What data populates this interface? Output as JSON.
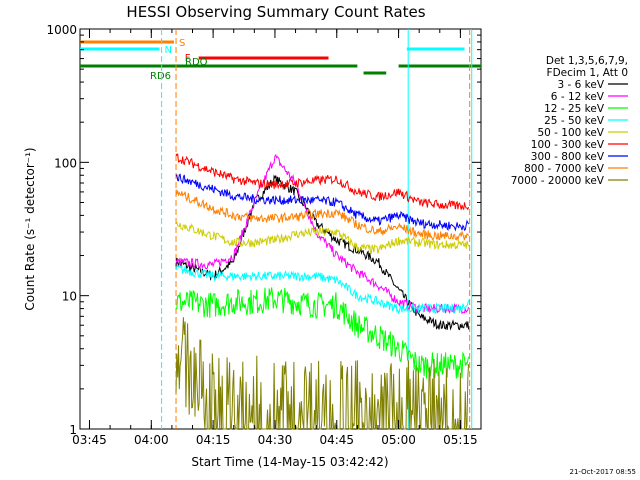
{
  "chart_data": {
    "type": "line",
    "title": "HESSI Observing Summary Count Rates",
    "xlabel": "Start Time (14-May-15 03:42:42)",
    "ylabel": "Count Rate (s⁻¹ detector⁻¹)",
    "y_scale": "log",
    "ylim": [
      1,
      1000
    ],
    "xlim": [
      "03:42:42",
      "05:20:00"
    ],
    "x_ticks": [
      "03:45",
      "04:00",
      "04:15",
      "04:30",
      "04:45",
      "05:00",
      "05:15"
    ],
    "y_ticks": [
      "1",
      "10",
      "100",
      "1000"
    ],
    "legend_title": [
      "Det 1,3,5,6,7,9,",
      "FDecim 1, Att 0"
    ],
    "legend_position": "right",
    "footer_stamp": "21-Oct-2017 08:55",
    "flags": [
      {
        "label": "S",
        "color": "#ff8000",
        "segments": [
          [
            "03:42:42",
            "04:05:30"
          ]
        ]
      },
      {
        "label": "N",
        "color": "#00ffff",
        "segments": [
          [
            "03:42:42",
            "04:02:00"
          ],
          [
            "05:02:00",
            "05:16:00"
          ]
        ]
      },
      {
        "label": "F",
        "color": "#ff0000",
        "segments": [
          [
            "04:11:30",
            "04:43:00"
          ]
        ]
      },
      {
        "label": "RDO",
        "color": "#007f00",
        "segments": [
          [
            "03:42:42",
            "04:50:00"
          ],
          [
            "05:00:00",
            "05:20:00"
          ]
        ]
      },
      {
        "label": "RD6",
        "color": "#007f00",
        "segments": [
          [
            "04:51:30",
            "04:57:00"
          ]
        ]
      }
    ],
    "vertical_lines": [
      {
        "time": "04:02:30",
        "color": "#00ffff",
        "style": "dashed"
      },
      {
        "time": "04:06:00",
        "color": "#ff8000",
        "style": "dashed"
      },
      {
        "time": "05:02:20",
        "color": "#00ffff",
        "style": "solid"
      },
      {
        "time": "05:17:15",
        "color": "#ff8000",
        "style": "dashed"
      },
      {
        "time": "05:17:45",
        "color": "#00ffff",
        "style": "solid"
      }
    ],
    "series": [
      {
        "name": "3 - 6 keV",
        "color": "#000000",
        "x": [
          "04:06",
          "04:15",
          "04:20",
          "04:25",
          "04:30",
          "04:35",
          "04:40",
          "04:45",
          "04:50",
          "04:55",
          "05:00",
          "05:05",
          "05:10",
          "05:15",
          "05:17"
        ],
        "values": [
          18,
          14,
          18,
          50,
          75,
          60,
          35,
          26,
          22,
          18,
          11,
          7,
          6,
          6,
          6
        ]
      },
      {
        "name": "6 - 12 keV",
        "color": "#ff00ff",
        "x": [
          "04:06",
          "04:15",
          "04:20",
          "04:25",
          "04:30",
          "04:35",
          "04:40",
          "04:45",
          "04:50",
          "04:55",
          "05:00",
          "05:05",
          "05:10",
          "05:15",
          "05:17"
        ],
        "values": [
          18,
          17,
          20,
          50,
          110,
          70,
          30,
          20,
          15,
          12,
          9,
          8,
          8,
          8,
          8
        ]
      },
      {
        "name": "12 - 25 keV",
        "color": "#00ff00",
        "x": [
          "04:06",
          "04:15",
          "04:20",
          "04:25",
          "04:30",
          "04:35",
          "04:40",
          "04:45",
          "04:50",
          "04:55",
          "05:00",
          "05:05",
          "05:10",
          "05:15",
          "05:17"
        ],
        "values": [
          9,
          8.5,
          9,
          9,
          9.5,
          9,
          8.5,
          8.5,
          6,
          5,
          4,
          3,
          3,
          3,
          3
        ]
      },
      {
        "name": "25 - 50 keV",
        "color": "#00ffff",
        "x": [
          "04:06",
          "04:15",
          "04:20",
          "04:25",
          "04:30",
          "04:35",
          "04:40",
          "04:45",
          "04:50",
          "04:55",
          "05:00",
          "05:05",
          "05:10",
          "05:15",
          "05:17"
        ],
        "values": [
          16,
          14,
          14,
          14,
          14,
          14,
          14,
          13,
          10,
          9,
          8,
          8,
          8,
          8,
          9
        ]
      },
      {
        "name": "50 - 100 keV",
        "color": "#cccc00",
        "x": [
          "04:06",
          "04:15",
          "04:20",
          "04:25",
          "04:30",
          "04:35",
          "04:40",
          "04:45",
          "04:50",
          "04:55",
          "05:00",
          "05:05",
          "05:10",
          "05:15",
          "05:17"
        ],
        "values": [
          35,
          28,
          25,
          25,
          26,
          29,
          30,
          30,
          23,
          22,
          26,
          25,
          24,
          24,
          24
        ]
      },
      {
        "name": "100 - 300 keV",
        "color": "#ff0000",
        "x": [
          "04:06",
          "04:15",
          "04:20",
          "04:25",
          "04:30",
          "04:35",
          "04:40",
          "04:45",
          "04:50",
          "04:55",
          "05:00",
          "05:05",
          "05:10",
          "05:15",
          "05:17"
        ],
        "values": [
          110,
          85,
          75,
          70,
          68,
          70,
          73,
          75,
          60,
          55,
          60,
          50,
          48,
          47,
          48
        ]
      },
      {
        "name": "300 - 800 keV",
        "color": "#0000ff",
        "x": [
          "04:06",
          "04:15",
          "04:20",
          "04:25",
          "04:30",
          "04:35",
          "04:40",
          "04:45",
          "04:50",
          "04:55",
          "05:00",
          "05:05",
          "05:10",
          "05:15",
          "05:17"
        ],
        "values": [
          78,
          63,
          56,
          53,
          52,
          52,
          52,
          50,
          40,
          36,
          40,
          35,
          34,
          33,
          34
        ]
      },
      {
        "name": "800 - 7000 keV",
        "color": "#ff8000",
        "x": [
          "04:06",
          "04:15",
          "04:20",
          "04:25",
          "04:30",
          "04:35",
          "04:40",
          "04:45",
          "04:50",
          "04:55",
          "05:00",
          "05:05",
          "05:10",
          "05:15",
          "05:17"
        ],
        "values": [
          60,
          45,
          40,
          38,
          38,
          39,
          41,
          42,
          34,
          30,
          33,
          29,
          28,
          28,
          28
        ]
      },
      {
        "name": "7000 - 20000 keV",
        "color": "#808000",
        "x": [
          "04:06",
          "04:10",
          "04:15",
          "04:20",
          "04:25",
          "04:30",
          "04:35",
          "04:40",
          "04:45",
          "04:50",
          "04:55",
          "05:00",
          "05:05",
          "05:10",
          "05:15",
          "05:17"
        ],
        "values": [
          4,
          2.5,
          1.8,
          1.6,
          1.6,
          1.6,
          1.6,
          1.6,
          1.6,
          1.5,
          1.5,
          1.5,
          1.5,
          1.5,
          1.5,
          1.5
        ]
      }
    ]
  }
}
